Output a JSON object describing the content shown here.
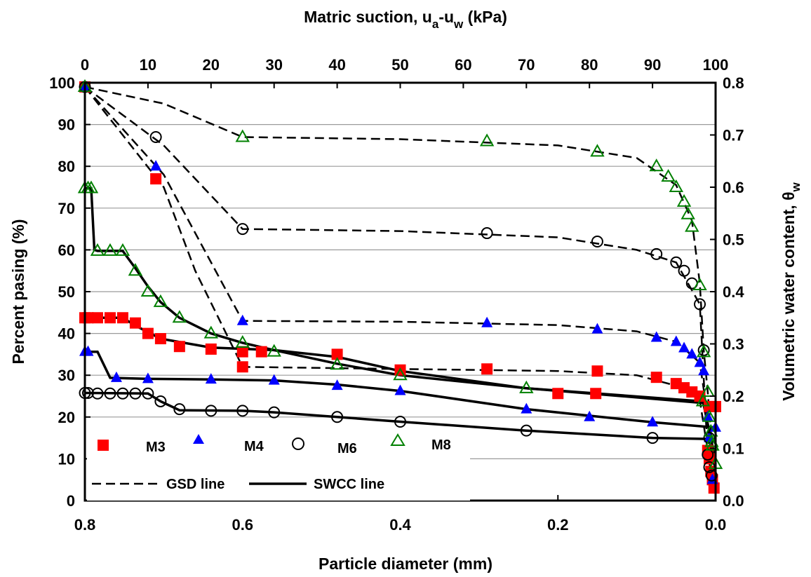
{
  "colors": {
    "m3": "#ff0000",
    "m4": "#0000ff",
    "m6": "#000000",
    "m8": "#008000",
    "grid": "#9a9a9a",
    "line": "#000000"
  },
  "chart_data": {
    "type": "scatter",
    "title": "",
    "x_top_label": "Matric suction, u",
    "x_top_label_sub": "a",
    "x_top_label_mid": "-u",
    "x_top_label_sub2": "w",
    "x_top_label_tail": " (kPa)",
    "x_bottom_label": "Particle diameter (mm)",
    "y_left_label": "Percent pasing (%)",
    "y_right_label": "Volumetric water content, θ",
    "y_right_label_sub": "w",
    "x_bottom_lim": [
      0.8,
      0.0
    ],
    "x_top_lim": [
      0,
      100
    ],
    "y_left_lim": [
      0,
      100
    ],
    "y_right_lim": [
      0,
      0.8
    ],
    "x_bottom_ticks": [
      "0.8",
      "0.6",
      "0.4",
      "0.2",
      "0.0"
    ],
    "x_bottom_tick_values": [
      0.8,
      0.6,
      0.4,
      0.2,
      0.0
    ],
    "x_top_ticks": [
      "0",
      "10",
      "20",
      "30",
      "40",
      "50",
      "60",
      "70",
      "80",
      "90",
      "100"
    ],
    "x_top_tick_values": [
      0,
      10,
      20,
      30,
      40,
      50,
      60,
      70,
      80,
      90,
      100
    ],
    "y_left_ticks": [
      "0",
      "10",
      "20",
      "30",
      "40",
      "50",
      "60",
      "70",
      "80",
      "90",
      "100"
    ],
    "y_left_tick_values": [
      0,
      10,
      20,
      30,
      40,
      50,
      60,
      70,
      80,
      90,
      100
    ],
    "y_right_ticks": [
      "0.0",
      "0.1",
      "0.2",
      "0.3",
      "0.4",
      "0.5",
      "0.6",
      "0.7",
      "0.8"
    ],
    "y_right_tick_values": [
      0.0,
      0.1,
      0.2,
      0.3,
      0.4,
      0.5,
      0.6,
      0.7,
      0.8
    ],
    "grid": true,
    "legend_position": "bottom-left",
    "legend": {
      "m3": "M3",
      "m4": "M4",
      "m6": "M6",
      "m8": "M8",
      "gsd": "GSD line",
      "swcc": "SWCC line"
    },
    "series": [
      {
        "name": "M3",
        "marker": "square",
        "color_key": "m3",
        "gsd_points": [
          [
            0.8,
            99
          ],
          [
            0.71,
            77
          ],
          [
            0.6,
            32
          ],
          [
            0.29,
            31.5
          ],
          [
            0.15,
            31
          ],
          [
            0.075,
            29.5
          ],
          [
            0.05,
            28
          ],
          [
            0.04,
            27
          ],
          [
            0.03,
            26
          ],
          [
            0.02,
            25
          ],
          [
            0.01,
            12
          ],
          [
            0.008,
            10
          ],
          [
            0.006,
            7
          ],
          [
            0.004,
            5
          ],
          [
            0.002,
            3
          ]
        ],
        "gsd_line": [
          [
            0.8,
            99
          ],
          [
            0.7,
            75
          ],
          [
            0.66,
            55
          ],
          [
            0.6,
            32
          ],
          [
            0.4,
            31.5
          ],
          [
            0.2,
            31
          ],
          [
            0.1,
            30
          ],
          [
            0.04,
            27
          ],
          [
            0.02,
            24
          ],
          [
            0.01,
            12
          ],
          [
            0.002,
            3
          ]
        ],
        "swcc_points": [
          [
            0,
            0.35
          ],
          [
            0.5,
            0.35
          ],
          [
            2,
            0.35
          ],
          [
            4,
            0.35
          ],
          [
            6,
            0.35
          ],
          [
            8,
            0.34
          ],
          [
            10,
            0.32
          ],
          [
            12,
            0.31
          ],
          [
            15,
            0.295
          ],
          [
            20,
            0.29
          ],
          [
            25,
            0.285
          ],
          [
            28,
            0.285
          ],
          [
            40,
            0.28
          ],
          [
            50,
            0.25
          ],
          [
            75,
            0.205
          ],
          [
            81,
            0.205
          ],
          [
            99,
            0.18
          ],
          [
            100,
            0.18
          ]
        ],
        "swcc_line": [
          [
            0,
            0.35
          ],
          [
            2,
            0.35
          ],
          [
            6,
            0.35
          ],
          [
            8,
            0.335
          ],
          [
            12,
            0.31
          ],
          [
            20,
            0.293
          ],
          [
            30,
            0.288
          ],
          [
            40,
            0.275
          ],
          [
            50,
            0.248
          ],
          [
            70,
            0.215
          ],
          [
            90,
            0.195
          ],
          [
            100,
            0.185
          ]
        ]
      },
      {
        "name": "M4",
        "marker": "triangle",
        "color_key": "m4",
        "gsd_points": [
          [
            0.8,
            99
          ],
          [
            0.71,
            80
          ],
          [
            0.6,
            43
          ],
          [
            0.29,
            42.5
          ],
          [
            0.15,
            41
          ],
          [
            0.075,
            39
          ],
          [
            0.05,
            38
          ],
          [
            0.04,
            36.5
          ],
          [
            0.03,
            35
          ],
          [
            0.02,
            33
          ],
          [
            0.015,
            31
          ],
          [
            0.01,
            20
          ],
          [
            0.008,
            15
          ],
          [
            0.004,
            5
          ]
        ],
        "gsd_line": [
          [
            0.8,
            99
          ],
          [
            0.7,
            78
          ],
          [
            0.6,
            43
          ],
          [
            0.4,
            42.8
          ],
          [
            0.2,
            42
          ],
          [
            0.1,
            40.5
          ],
          [
            0.05,
            38
          ],
          [
            0.02,
            33
          ],
          [
            0.01,
            20
          ],
          [
            0.004,
            5
          ]
        ],
        "swcc_points": [
          [
            0,
            0.285
          ],
          [
            0.5,
            0.285
          ],
          [
            5,
            0.235
          ],
          [
            10,
            0.233
          ],
          [
            20,
            0.232
          ],
          [
            30,
            0.23
          ],
          [
            40,
            0.22
          ],
          [
            50,
            0.21
          ],
          [
            70,
            0.175
          ],
          [
            80,
            0.16
          ],
          [
            90,
            0.15
          ],
          [
            100,
            0.14
          ]
        ],
        "swcc_line": [
          [
            0,
            0.285
          ],
          [
            2,
            0.285
          ],
          [
            4,
            0.235
          ],
          [
            10,
            0.233
          ],
          [
            20,
            0.232
          ],
          [
            30,
            0.23
          ],
          [
            40,
            0.222
          ],
          [
            50,
            0.21
          ],
          [
            70,
            0.175
          ],
          [
            90,
            0.15
          ],
          [
            100,
            0.14
          ]
        ]
      },
      {
        "name": "M6",
        "marker": "circle",
        "color_key": "m6",
        "gsd_points": [
          [
            0.8,
            99
          ],
          [
            0.71,
            87
          ],
          [
            0.6,
            65
          ],
          [
            0.29,
            64
          ],
          [
            0.15,
            62
          ],
          [
            0.075,
            59
          ],
          [
            0.05,
            57
          ],
          [
            0.04,
            55
          ],
          [
            0.03,
            52
          ],
          [
            0.02,
            47
          ],
          [
            0.015,
            36
          ],
          [
            0.01,
            11
          ],
          [
            0.008,
            8
          ],
          [
            0.005,
            6
          ]
        ],
        "gsd_line": [
          [
            0.8,
            99
          ],
          [
            0.7,
            85
          ],
          [
            0.6,
            65
          ],
          [
            0.4,
            64.5
          ],
          [
            0.2,
            63
          ],
          [
            0.1,
            60
          ],
          [
            0.05,
            57
          ],
          [
            0.02,
            47
          ],
          [
            0.01,
            11
          ],
          [
            0.005,
            6
          ]
        ],
        "swcc_points": [
          [
            0,
            0.206
          ],
          [
            0.5,
            0.206
          ],
          [
            2,
            0.205
          ],
          [
            4,
            0.205
          ],
          [
            6,
            0.205
          ],
          [
            8,
            0.205
          ],
          [
            10,
            0.205
          ],
          [
            12,
            0.19
          ],
          [
            15,
            0.175
          ],
          [
            20,
            0.172
          ],
          [
            25,
            0.172
          ],
          [
            30,
            0.169
          ],
          [
            40,
            0.16
          ],
          [
            50,
            0.151
          ],
          [
            70,
            0.134
          ],
          [
            90,
            0.12
          ],
          [
            99,
            0.12
          ]
        ],
        "swcc_line": [
          [
            0,
            0.206
          ],
          [
            10,
            0.205
          ],
          [
            12,
            0.19
          ],
          [
            15,
            0.173
          ],
          [
            25,
            0.172
          ],
          [
            30,
            0.169
          ],
          [
            40,
            0.16
          ],
          [
            50,
            0.151
          ],
          [
            70,
            0.134
          ],
          [
            90,
            0.12
          ],
          [
            99,
            0.118
          ]
        ]
      },
      {
        "name": "M8",
        "marker": "triangle-open",
        "color_key": "m8",
        "gsd_points": [
          [
            0.8,
            99
          ],
          [
            0.6,
            87
          ],
          [
            0.29,
            86
          ],
          [
            0.15,
            83.5
          ],
          [
            0.075,
            80
          ],
          [
            0.06,
            77.5
          ],
          [
            0.05,
            75
          ],
          [
            0.04,
            71.5
          ],
          [
            0.035,
            68.5
          ],
          [
            0.03,
            65.5
          ],
          [
            0.02,
            51.5
          ],
          [
            0.015,
            35.5
          ],
          [
            0.01,
            26
          ],
          [
            0.008,
            20
          ],
          [
            0.006,
            16.5
          ],
          [
            0.005,
            14
          ]
        ],
        "gsd_line": [
          [
            0.8,
            99
          ],
          [
            0.7,
            95
          ],
          [
            0.6,
            87
          ],
          [
            0.4,
            86.5
          ],
          [
            0.2,
            85
          ],
          [
            0.1,
            82
          ],
          [
            0.05,
            75.5
          ],
          [
            0.03,
            67
          ],
          [
            0.02,
            52
          ],
          [
            0.015,
            36
          ],
          [
            0.01,
            26
          ],
          [
            0.005,
            14
          ]
        ],
        "swcc_points": [
          [
            0,
            0.598
          ],
          [
            0.5,
            0.598
          ],
          [
            1,
            0.598
          ],
          [
            2,
            0.478
          ],
          [
            4,
            0.478
          ],
          [
            6,
            0.478
          ],
          [
            8,
            0.44
          ],
          [
            10,
            0.4
          ],
          [
            12,
            0.38
          ],
          [
            15,
            0.35
          ],
          [
            20,
            0.32
          ],
          [
            25,
            0.302
          ],
          [
            30,
            0.285
          ],
          [
            40,
            0.26
          ],
          [
            50,
            0.24
          ],
          [
            70,
            0.215
          ],
          [
            98,
            0.19
          ],
          [
            99.5,
            0.105
          ],
          [
            100,
            0.07
          ]
        ],
        "swcc_line": [
          [
            0,
            0.598
          ],
          [
            1,
            0.598
          ],
          [
            1.5,
            0.48
          ],
          [
            2,
            0.478
          ],
          [
            6,
            0.478
          ],
          [
            8,
            0.445
          ],
          [
            10,
            0.41
          ],
          [
            12,
            0.38
          ],
          [
            15,
            0.35
          ],
          [
            20,
            0.32
          ],
          [
            25,
            0.302
          ],
          [
            30,
            0.288
          ],
          [
            40,
            0.262
          ],
          [
            50,
            0.24
          ],
          [
            70,
            0.215
          ],
          [
            98,
            0.19
          ],
          [
            99.5,
            0.105
          ],
          [
            100,
            0.07
          ]
        ]
      }
    ]
  }
}
